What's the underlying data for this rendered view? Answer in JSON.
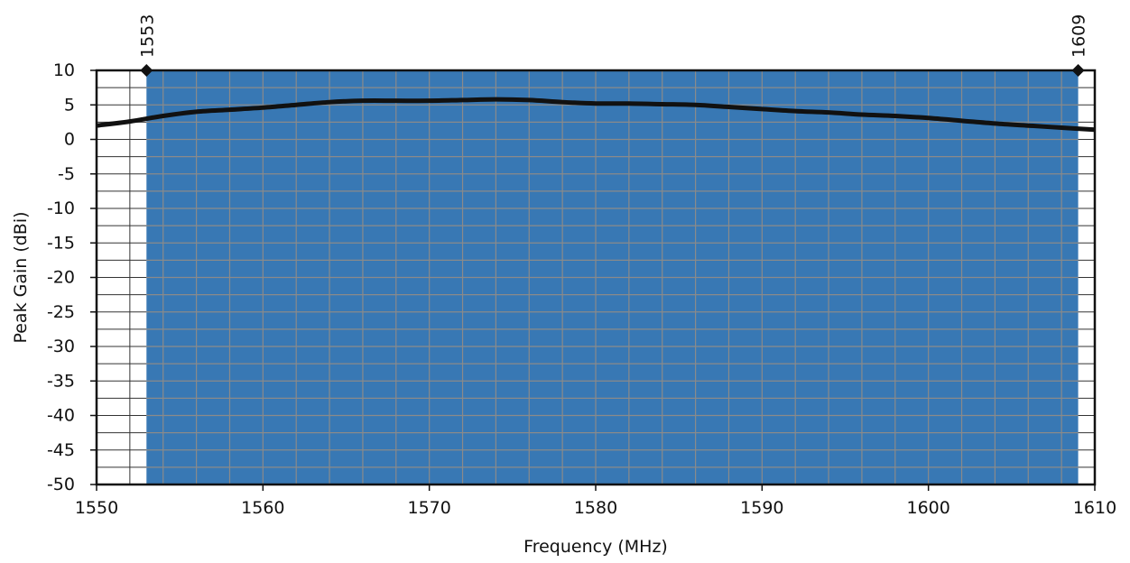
{
  "chart_data": {
    "type": "line",
    "title": "",
    "xlabel": "Frequency (MHz)",
    "ylabel": "Peak Gain (dBi)",
    "xlim": [
      1550,
      1610
    ],
    "ylim": [
      -50,
      10
    ],
    "x_ticks": [
      1550,
      1560,
      1570,
      1580,
      1590,
      1600,
      1610
    ],
    "y_ticks": [
      10,
      5,
      0,
      -5,
      -10,
      -15,
      -20,
      -25,
      -30,
      -35,
      -40,
      -45,
      -50
    ],
    "x_minor_step": 2,
    "y_minor_step": 2.5,
    "grid": true,
    "band": {
      "start": 1553,
      "end": 1609,
      "color": "#3878B4",
      "grid_color": "#8A8A8A"
    },
    "band_markers": [
      {
        "x": 1553,
        "label": "1553"
      },
      {
        "x": 1609,
        "label": "1609"
      }
    ],
    "series": [
      {
        "line_color": "#111111",
        "points": [
          [
            1550,
            2.0
          ],
          [
            1552,
            2.6
          ],
          [
            1554,
            3.4
          ],
          [
            1556,
            4.0
          ],
          [
            1558,
            4.3
          ],
          [
            1560,
            4.6
          ],
          [
            1562,
            5.0
          ],
          [
            1564,
            5.4
          ],
          [
            1566,
            5.6
          ],
          [
            1568,
            5.6
          ],
          [
            1570,
            5.6
          ],
          [
            1572,
            5.7
          ],
          [
            1574,
            5.8
          ],
          [
            1576,
            5.7
          ],
          [
            1578,
            5.4
          ],
          [
            1580,
            5.2
          ],
          [
            1582,
            5.2
          ],
          [
            1584,
            5.1
          ],
          [
            1586,
            5.0
          ],
          [
            1588,
            4.7
          ],
          [
            1590,
            4.4
          ],
          [
            1592,
            4.1
          ],
          [
            1594,
            3.9
          ],
          [
            1596,
            3.6
          ],
          [
            1598,
            3.4
          ],
          [
            1600,
            3.1
          ],
          [
            1602,
            2.7
          ],
          [
            1604,
            2.3
          ],
          [
            1606,
            2.0
          ],
          [
            1608,
            1.7
          ],
          [
            1610,
            1.4
          ]
        ]
      }
    ]
  }
}
